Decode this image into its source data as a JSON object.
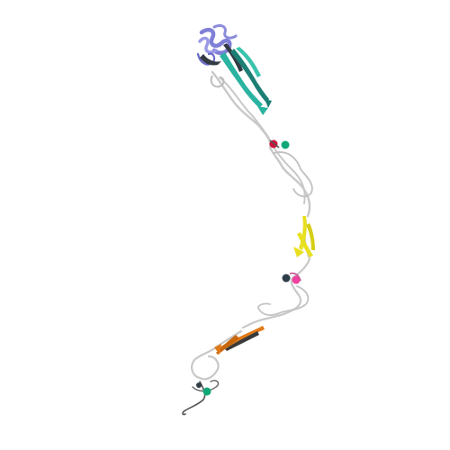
{
  "scene": {
    "description_visible_text": "",
    "background": "#ffffff",
    "colors": {
      "coil": "#c8c8c8",
      "coil_dark": "#444444",
      "helix_purple": "#7f7fd8",
      "strand_teal": "#2ab3a0",
      "strand_teal_dark": "#1d7f74",
      "strand_dark": "#333a44",
      "strand_yellow": "#e8e020",
      "strand_orange": "#e07a18",
      "ligand_red": "#d0103a",
      "ligand_pink": "#f040a0",
      "ligand_green": "#10a878",
      "ligand_dark": "#2f3d48"
    },
    "segments": [
      {
        "name": "n-terminal-domain",
        "color_key": "helix_purple"
      },
      {
        "name": "upper-beta-sheet",
        "color_key": "strand_teal"
      },
      {
        "name": "middle-beta-sheet",
        "color_key": "strand_yellow"
      },
      {
        "name": "lower-beta-sheet",
        "color_key": "strand_orange"
      }
    ],
    "ligands": [
      {
        "name": "ligand-upper",
        "atoms": [
          "ligand_red",
          "ligand_green"
        ]
      },
      {
        "name": "ligand-middle",
        "atoms": [
          "ligand_dark",
          "ligand_pink"
        ]
      },
      {
        "name": "ligand-lower",
        "atoms": [
          "ligand_green",
          "ligand_dark"
        ]
      }
    ]
  }
}
